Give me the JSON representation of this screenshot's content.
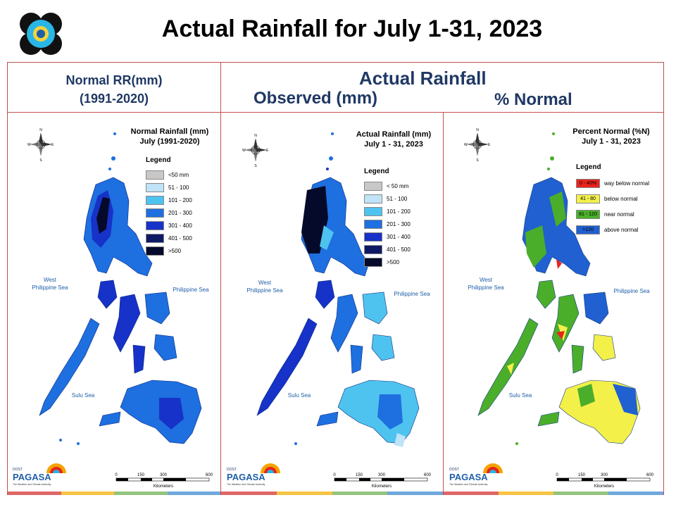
{
  "title": "Actual Rainfall for July 1-31, 2023",
  "headers": {
    "normal_line1": "Normal RR(mm)",
    "normal_line2": "(1991-2020)",
    "actual": "Actual Rainfall",
    "observed": "Observed (mm)",
    "percent": "% Normal"
  },
  "panels": [
    {
      "title_line1": "Normal Rainfall (mm)",
      "title_line2": "July (1991-2020)",
      "legend_title": "Legend",
      "legend": [
        {
          "label": "<50 mm",
          "color": "#c8c8c8"
        },
        {
          "label": "51 - 100",
          "color": "#bfe3f7"
        },
        {
          "label": "101 - 200",
          "color": "#4fc3ef"
        },
        {
          "label": "201 - 300",
          "color": "#1e6fe0"
        },
        {
          "label": "301 - 400",
          "color": "#1732c8"
        },
        {
          "label": "401 - 500",
          "color": "#0f1a66"
        },
        {
          "label": ">500",
          "color": "#050a2a"
        }
      ]
    },
    {
      "title_line1": "Actual Rainfall (mm)",
      "title_line2": "July 1 - 31, 2023",
      "legend_title": "Legend",
      "legend": [
        {
          "label": "< 50 mm",
          "color": "#c8c8c8"
        },
        {
          "label": "51 - 100",
          "color": "#bfe3f7"
        },
        {
          "label": "101 - 200",
          "color": "#4fc3ef"
        },
        {
          "label": "201 - 300",
          "color": "#1e6fe0"
        },
        {
          "label": "301 - 400",
          "color": "#1732c8"
        },
        {
          "label": "401 - 500",
          "color": "#0f1a66"
        },
        {
          "label": ">500",
          "color": "#050a2a"
        }
      ]
    },
    {
      "title_line1": "Percent Normal (%N)",
      "title_line2": "July 1 - 31, 2023",
      "legend_title": "Legend",
      "legend": [
        {
          "code": "0 - 40%",
          "label": "way below normal",
          "color": "#e8231d"
        },
        {
          "code": "41 - 80",
          "label": "below normal",
          "color": "#f3f04a"
        },
        {
          "code": "81 - 120",
          "label": "near normal",
          "color": "#4aae2a"
        },
        {
          "code": ">120",
          "label": "above normal",
          "color": "#2060d0"
        }
      ]
    }
  ],
  "map_labels": {
    "west_sea_1": "West",
    "west_sea_2": "Philippine Sea",
    "east_sea": "Philippine Sea",
    "sulu_sea": "Sulu Sea",
    "compass_n": "N",
    "compass_s": "S",
    "compass_e": "E",
    "compass_w": "W",
    "scale_ticks": [
      "0",
      "150",
      "300",
      "600"
    ],
    "scale_unit": "Kilometers",
    "brand_small": "DOST",
    "brand": "PAGASA",
    "brand_tag": "The Weather and Climate Authority"
  },
  "colors": {
    "frame": "#c0504d",
    "header_text": "#1f3864",
    "stripe": [
      "#e06666",
      "#f6c343",
      "#93c47d",
      "#6fa8dc"
    ]
  }
}
